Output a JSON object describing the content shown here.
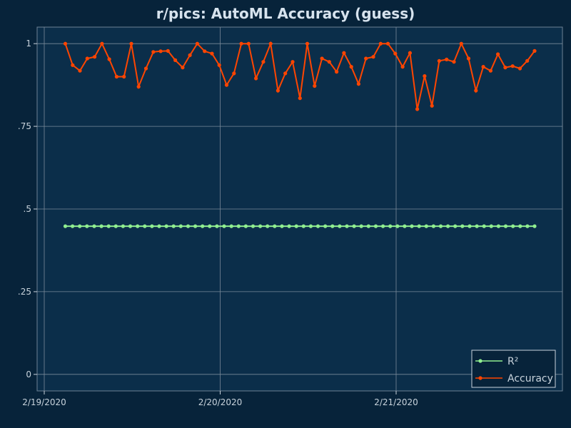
{
  "chart_data": {
    "type": "line",
    "title": "r/pics: AutoML Accuracy (guess)",
    "xlabel": "",
    "ylabel": "",
    "x_tick_labels": [
      "2/19/2020",
      "2/20/2020",
      "2/21/2020"
    ],
    "y_tick_labels": [
      "0",
      ".25",
      ".5",
      ".75",
      "1"
    ],
    "y_ticks": [
      0,
      0.25,
      0.5,
      0.75,
      1
    ],
    "ylim": [
      -0.05,
      1.05
    ],
    "grid": true,
    "legend_position": "bottom-right",
    "series": [
      {
        "name": "R²",
        "color": "#90ee90",
        "values": [
          0.448,
          0.448,
          0.448,
          0.448,
          0.448,
          0.448,
          0.448,
          0.448,
          0.448,
          0.448,
          0.448,
          0.448,
          0.448,
          0.448,
          0.448,
          0.448,
          0.448,
          0.448,
          0.448,
          0.448,
          0.448,
          0.448,
          0.448,
          0.448,
          0.448,
          0.448,
          0.448,
          0.448,
          0.448,
          0.448,
          0.448,
          0.448,
          0.448,
          0.448,
          0.448,
          0.448,
          0.448,
          0.448,
          0.448,
          0.448,
          0.448,
          0.448,
          0.448,
          0.448,
          0.448,
          0.448,
          0.448,
          0.448,
          0.448,
          0.448,
          0.448,
          0.448,
          0.448,
          0.448,
          0.448,
          0.448,
          0.448,
          0.448,
          0.448,
          0.448,
          0.448,
          0.448,
          0.448,
          0.448,
          0.448,
          0.448
        ]
      },
      {
        "name": "Accuracy",
        "color": "#ff4500",
        "values": [
          1.0,
          0.935,
          0.918,
          0.955,
          0.96,
          1.0,
          0.953,
          0.9,
          0.9,
          1.0,
          0.87,
          0.925,
          0.975,
          0.977,
          0.978,
          0.95,
          0.928,
          0.965,
          1.0,
          0.977,
          0.97,
          0.935,
          0.875,
          0.91,
          1.0,
          1.0,
          0.895,
          0.945,
          1.0,
          0.858,
          0.91,
          0.945,
          0.835,
          1.0,
          0.872,
          0.955,
          0.945,
          0.915,
          0.972,
          0.93,
          0.878,
          0.955,
          0.96,
          1.0,
          1.0,
          0.97,
          0.93,
          0.972,
          0.802,
          0.902,
          0.812,
          0.948,
          0.952,
          0.945,
          1.0,
          0.955,
          0.858,
          0.93,
          0.918,
          0.968,
          0.928,
          0.932,
          0.925,
          0.948,
          0.978
        ]
      }
    ],
    "colors": {
      "background": "#07233a",
      "plot_background": "#0b2e4a",
      "grid": "#7a8a99",
      "axis_text": "#c8d3dc",
      "title": "#d7e3ee"
    }
  }
}
